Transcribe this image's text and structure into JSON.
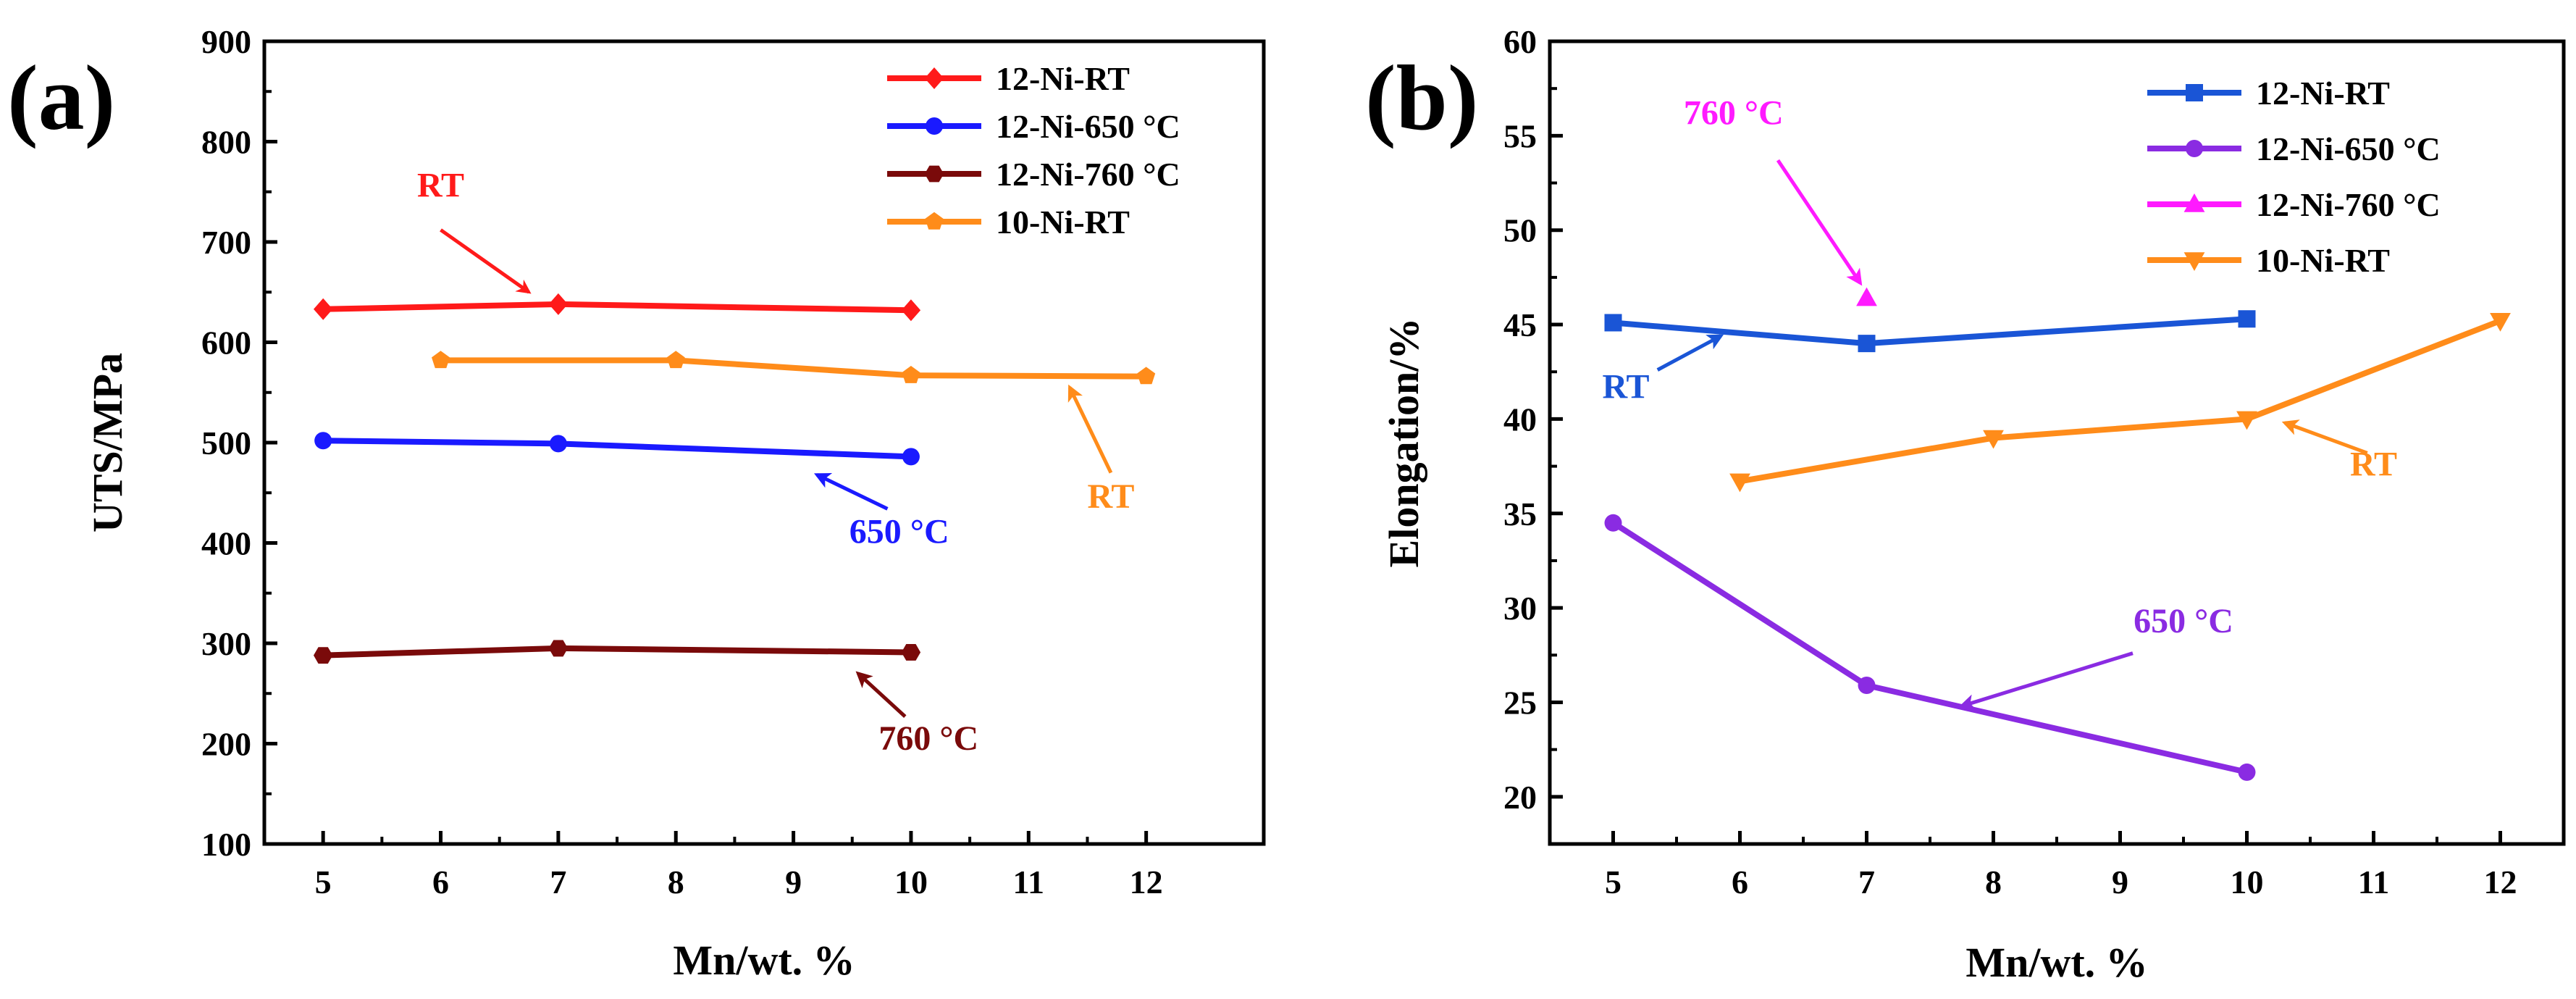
{
  "chart_data": [
    {
      "type": "line",
      "panel_label": "(a)",
      "title": "",
      "xlabel": "Mn/wt. %",
      "ylabel": "UTS/MPa",
      "xlim": [
        4.5,
        13.0
      ],
      "ylim": [
        100,
        900
      ],
      "xticks": [
        5,
        6,
        7,
        8,
        9,
        10,
        11,
        12
      ],
      "yticks": [
        100,
        200,
        300,
        400,
        500,
        600,
        700,
        800,
        900
      ],
      "legend_position": "top-right",
      "series": [
        {
          "name": "12-Ni-RT",
          "color": "#ff1a1a",
          "marker": "diamond",
          "x": [
            5,
            7,
            10
          ],
          "y": [
            633,
            638,
            632
          ]
        },
        {
          "name": "12-Ni-650 °C",
          "color": "#1a1aff",
          "marker": "circle",
          "x": [
            5,
            7,
            10
          ],
          "y": [
            502,
            499,
            486
          ]
        },
        {
          "name": "12-Ni-760 °C",
          "color": "#7a0a0a",
          "marker": "hexagon",
          "x": [
            5,
            7,
            10
          ],
          "y": [
            288,
            295,
            291
          ]
        },
        {
          "name": "10-Ni-RT",
          "color": "#ff8c1a",
          "marker": "pentagon",
          "x": [
            6,
            8,
            10,
            12
          ],
          "y": [
            582,
            582,
            567,
            566
          ]
        }
      ],
      "annotations": [
        {
          "text": "RT",
          "color": "#ff1a1a",
          "x": 6.0,
          "y": 745,
          "arrow_from": [
            6.0,
            712
          ],
          "arrow_to": [
            6.75,
            650
          ]
        },
        {
          "text": "RT",
          "color": "#ff8c1a",
          "x": 11.7,
          "y": 435,
          "arrow_from": [
            11.7,
            470
          ],
          "arrow_to": [
            11.35,
            555
          ]
        },
        {
          "text": "650 °C",
          "color": "#1a1aff",
          "x": 9.9,
          "y": 400,
          "arrow_from": [
            9.8,
            434
          ],
          "arrow_to": [
            9.2,
            468
          ]
        },
        {
          "text": "760 °C",
          "color": "#7a0a0a",
          "x": 10.15,
          "y": 194,
          "arrow_from": [
            9.95,
            227
          ],
          "arrow_to": [
            9.55,
            270
          ]
        }
      ]
    },
    {
      "type": "line",
      "panel_label": "(b)",
      "title": "",
      "xlabel": "Mn/wt. %",
      "ylabel": "Elongation/%",
      "xlim": [
        4.5,
        12.5
      ],
      "ylim": [
        17.5,
        60
      ],
      "xticks": [
        5,
        6,
        7,
        8,
        9,
        10,
        11,
        12
      ],
      "yticks": [
        20,
        25,
        30,
        35,
        40,
        45,
        50,
        55,
        60
      ],
      "legend_position": "top-right",
      "series": [
        {
          "name": "12-Ni-RT",
          "color": "#1a55d6",
          "marker": "square",
          "x": [
            5,
            7,
            10
          ],
          "y": [
            45.1,
            44.0,
            45.3
          ]
        },
        {
          "name": "12-Ni-650 °C",
          "color": "#8a2be2",
          "marker": "circle",
          "x": [
            5,
            7,
            10
          ],
          "y": [
            34.5,
            25.9,
            21.3
          ]
        },
        {
          "name": "12-Ni-760 °C",
          "color": "#ff1aff",
          "marker": "triangle-up",
          "x": [
            7
          ],
          "y": [
            46.4
          ]
        },
        {
          "name": "10-Ni-RT",
          "color": "#ff8c1a",
          "marker": "triangle-down",
          "x": [
            6,
            8,
            10,
            12
          ],
          "y": [
            36.7,
            39.0,
            40.0,
            45.2
          ]
        }
      ],
      "annotations": [
        {
          "text": "760 °C",
          "color": "#ff1aff",
          "x": 5.95,
          "y": 55.6,
          "arrow_from": [
            6.3,
            53.7
          ],
          "arrow_to": [
            6.95,
            47.2
          ]
        },
        {
          "text": "RT",
          "color": "#1a55d6",
          "x": 5.1,
          "y": 41.1,
          "arrow_from": [
            5.35,
            42.6
          ],
          "arrow_to": [
            5.85,
            44.4
          ]
        },
        {
          "text": "RT",
          "color": "#ff8c1a",
          "x": 11.0,
          "y": 37.0,
          "arrow_from": [
            10.95,
            38.2
          ],
          "arrow_to": [
            10.3,
            39.8
          ]
        },
        {
          "text": "650 °C",
          "color": "#8a2be2",
          "x": 9.5,
          "y": 28.7,
          "arrow_from": [
            9.1,
            27.6
          ],
          "arrow_to": [
            7.75,
            24.8
          ]
        }
      ]
    }
  ]
}
